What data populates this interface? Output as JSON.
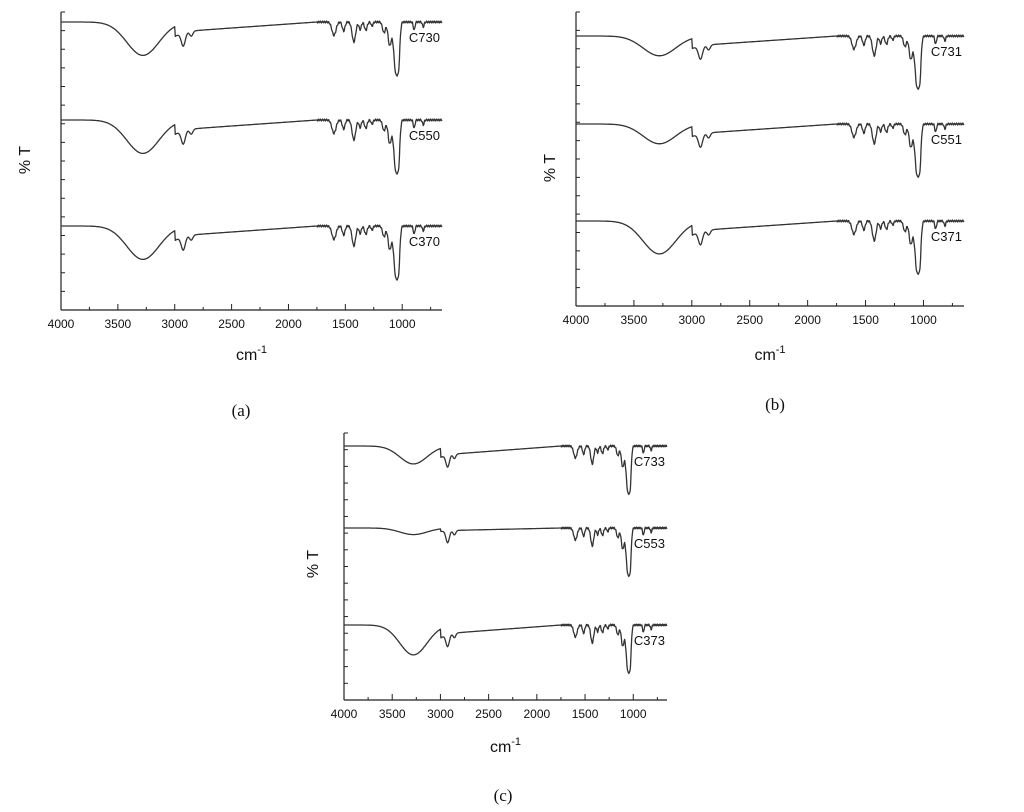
{
  "chart_data": [
    {
      "panel": "a",
      "type": "line",
      "caption": "(a)",
      "xlabel": "cm",
      "xlabel_sup": "-1",
      "ylabel": "% T",
      "xlim": [
        4000,
        650
      ],
      "x_reversed": true,
      "x_ticks": [
        4000,
        3500,
        3000,
        2500,
        2000,
        1500,
        1000
      ],
      "y_tick_labels": false,
      "grid": false,
      "series": [
        {
          "name": "C730",
          "profile": "standard"
        },
        {
          "name": "C550",
          "profile": "standard"
        },
        {
          "name": "C370",
          "profile": "standard"
        }
      ]
    },
    {
      "panel": "b",
      "type": "line",
      "caption": "(b)",
      "xlabel": "cm",
      "xlabel_sup": "-1",
      "ylabel": "% T",
      "xlim": [
        4000,
        650
      ],
      "x_reversed": true,
      "x_ticks": [
        4000,
        3500,
        3000,
        2500,
        2000,
        1500,
        1000
      ],
      "y_tick_labels": false,
      "grid": false,
      "series": [
        {
          "name": "C731",
          "profile": "shallow"
        },
        {
          "name": "C551",
          "profile": "shallow"
        },
        {
          "name": "C371",
          "profile": "standard"
        }
      ]
    },
    {
      "panel": "c",
      "type": "line",
      "caption": "(c)",
      "xlabel": "cm",
      "xlabel_sup": "-1",
      "ylabel": "% T",
      "xlim": [
        4000,
        650
      ],
      "x_reversed": true,
      "x_ticks": [
        4000,
        3500,
        3000,
        2500,
        2000,
        1500,
        1000
      ],
      "y_tick_labels": false,
      "grid": false,
      "series": [
        {
          "name": "C733",
          "profile": "shallow"
        },
        {
          "name": "C553",
          "profile": "flat"
        },
        {
          "name": "C373",
          "profile": "standard"
        }
      ]
    }
  ]
}
